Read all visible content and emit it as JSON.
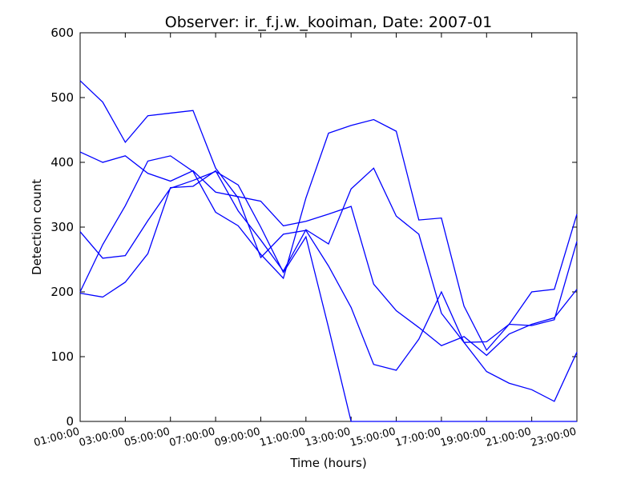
{
  "chart_data": {
    "type": "line",
    "title": "Observer: ir._f.j.w._kooiman, Date: 2007-01",
    "x_label": "Time (hours)",
    "y_label": "Detection count",
    "categories": [
      "01:00:00",
      null,
      "03:00:00",
      null,
      "05:00:00",
      null,
      "07:00:00",
      null,
      "09:00:00",
      null,
      "11:00:00",
      null,
      "13:00:00",
      null,
      "15:00:00",
      null,
      "17:00:00",
      null,
      "19:00:00",
      null,
      "21:00:00",
      null,
      "23:00:00"
    ],
    "series": [
      {
        "color": "#0000ff",
        "values": [
          526,
          493,
          431,
          472,
          476,
          480,
          391,
          345,
          253,
          289,
          295,
          240,
          176,
          88,
          79,
          127,
          200,
          122,
          77,
          59,
          49,
          31,
          107
        ]
      },
      {
        "color": "#0000ff",
        "values": [
          416,
          400,
          410,
          383,
          371,
          387,
          354,
          347,
          340,
          302,
          309,
          320,
          332,
          212,
          171,
          145,
          117,
          131,
          102,
          135,
          150,
          160,
          204
        ]
      },
      {
        "color": "#0000ff",
        "values": [
          200,
          273,
          333,
          402,
          410,
          386,
          323,
          302,
          258,
          221,
          345,
          445,
          457,
          466,
          448,
          311,
          314,
          178,
          110,
          150,
          200,
          204,
          320
        ]
      },
      {
        "color": "#0000ff",
        "values": [
          198,
          192,
          215,
          259,
          361,
          363,
          387,
          325,
          280,
          232,
          296,
          274,
          359,
          391,
          317,
          289,
          167,
          122,
          123,
          150,
          148,
          157,
          278
        ]
      },
      {
        "color": "#0000ff",
        "values": [
          293,
          252,
          256,
          310,
          360,
          372,
          386,
          365,
          300,
          230,
          285,
          145,
          0,
          0,
          0,
          0,
          0,
          0,
          0,
          0,
          0,
          0,
          0
        ]
      }
    ],
    "ylim": [
      0,
      600
    ],
    "yticks": [
      0,
      100,
      200,
      300,
      400,
      500,
      600
    ],
    "grid": false
  }
}
